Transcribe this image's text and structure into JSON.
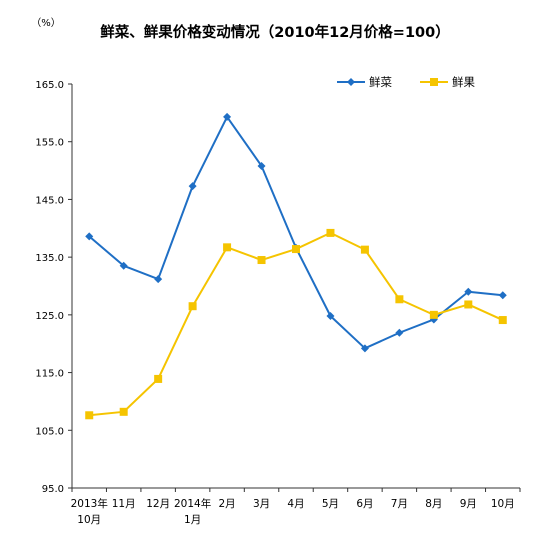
{
  "chart_data": {
    "type": "line",
    "title": "鲜菜、鲜果价格变动情况（2010年12月价格=100）",
    "unit_label": "（%）",
    "ylim": [
      95,
      165
    ],
    "yticks": [
      "165.0",
      "155.0",
      "145.0",
      "135.0",
      "125.0",
      "115.0",
      "105.0",
      "95.0"
    ],
    "grid": false,
    "legend_position": "top-right",
    "categories": [
      [
        "2013年",
        "10月"
      ],
      [
        "11月"
      ],
      [
        "12月"
      ],
      [
        "2014年",
        "1月"
      ],
      [
        "2月"
      ],
      [
        "3月"
      ],
      [
        "4月"
      ],
      [
        "5月"
      ],
      [
        "6月"
      ],
      [
        "7月"
      ],
      [
        "8月"
      ],
      [
        "9月"
      ],
      [
        "10月"
      ]
    ],
    "series": [
      {
        "name": "鲜菜",
        "color": "#1f6fc5",
        "marker": "diamond",
        "values": [
          138.6,
          133.5,
          131.2,
          147.3,
          159.3,
          150.8,
          136.6,
          124.8,
          119.2,
          121.9,
          124.2,
          129.0,
          128.4
        ]
      },
      {
        "name": "鲜果",
        "color": "#f5c400",
        "marker": "square",
        "values": [
          107.6,
          108.2,
          113.9,
          126.5,
          136.7,
          134.5,
          136.4,
          139.2,
          136.3,
          127.7,
          125.0,
          126.8,
          124.1
        ]
      }
    ]
  }
}
